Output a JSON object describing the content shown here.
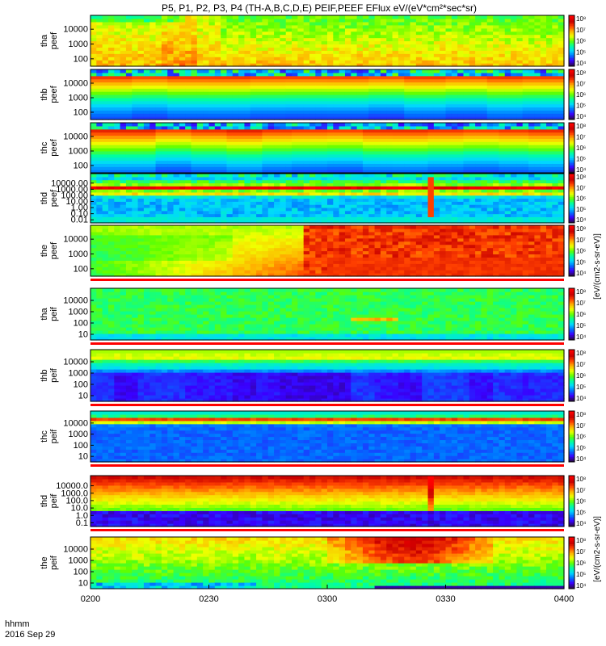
{
  "figure": {
    "title": "P5, P1, P2, P3, P4 (TH-A,B,C,D,E) PEIF,PEEF EFlux eV/(eV*cm²*sec*sr)",
    "time_label": "hhmm",
    "date_label": "2016 Sep 29",
    "colorbar_label": "[eV/(cm2-s-sr-eV)]",
    "colorbar_label_lower": "[eV/(cm2-s-sr-eV)]",
    "colormap": [
      "#2a0a4a",
      "#3a00ff",
      "#0070ff",
      "#00d8ff",
      "#00ffa0",
      "#60ff00",
      "#f0ff00",
      "#ffb000",
      "#ff4000",
      "#c80000",
      "#ff0000"
    ]
  },
  "chart_data": {
    "type": "heatmap",
    "x": {
      "label": "hhmm",
      "ticks": [
        "0200",
        "0230",
        "0300",
        "0330",
        "0400"
      ],
      "range": [
        "0200",
        "0400"
      ]
    },
    "colorbar_ticks": [
      "10⁴",
      "10⁵",
      "10⁶",
      "10⁷",
      "10⁸"
    ],
    "panels": [
      {
        "probe_label": "tha",
        "product_label": "peef",
        "yscale": "log",
        "yticks": [
          "100",
          "1000",
          "10000"
        ],
        "style": "tha_peef"
      },
      {
        "probe_label": "thb",
        "product_label": "peef",
        "yscale": "log",
        "yticks": [
          "100",
          "1000",
          "10000"
        ],
        "style": "thb_peef"
      },
      {
        "probe_label": "thc",
        "product_label": "peef",
        "yscale": "log",
        "yticks": [
          "100",
          "1000",
          "10000"
        ],
        "style": "thc_peef"
      },
      {
        "probe_label": "thd",
        "product_label": "peef",
        "yscale": "log",
        "yticks": [
          "0.01",
          "0.10",
          "1.00",
          "10.00",
          "100.00",
          "1000.00",
          "10000.00"
        ],
        "style": "thd_peef"
      },
      {
        "probe_label": "the",
        "product_label": "peef",
        "yscale": "log",
        "yticks": [
          "100",
          "1000",
          "10000"
        ],
        "style": "the_peef"
      },
      {
        "probe_label": "tha",
        "product_label": "peif",
        "yscale": "log",
        "yticks": [
          "10",
          "100",
          "1000",
          "10000"
        ],
        "style": "tha_peif"
      },
      {
        "probe_label": "thb",
        "product_label": "peif",
        "yscale": "log",
        "yticks": [
          "10",
          "100",
          "1000",
          "10000"
        ],
        "style": "thb_peif"
      },
      {
        "probe_label": "thc",
        "product_label": "peif",
        "yscale": "log",
        "yticks": [
          "10",
          "100",
          "1000",
          "10000"
        ],
        "style": "thc_peif"
      },
      {
        "probe_label": "thd",
        "product_label": "peif",
        "yscale": "log",
        "yticks": [
          "0.1",
          "1.0",
          "10.0",
          "100.0",
          "1000.0",
          "10000.0"
        ],
        "style": "thd_peif"
      },
      {
        "probe_label": "the",
        "product_label": "peif",
        "yscale": "log",
        "yticks": [
          "10",
          "100",
          "1000",
          "10000"
        ],
        "style": "the_peif"
      }
    ]
  }
}
